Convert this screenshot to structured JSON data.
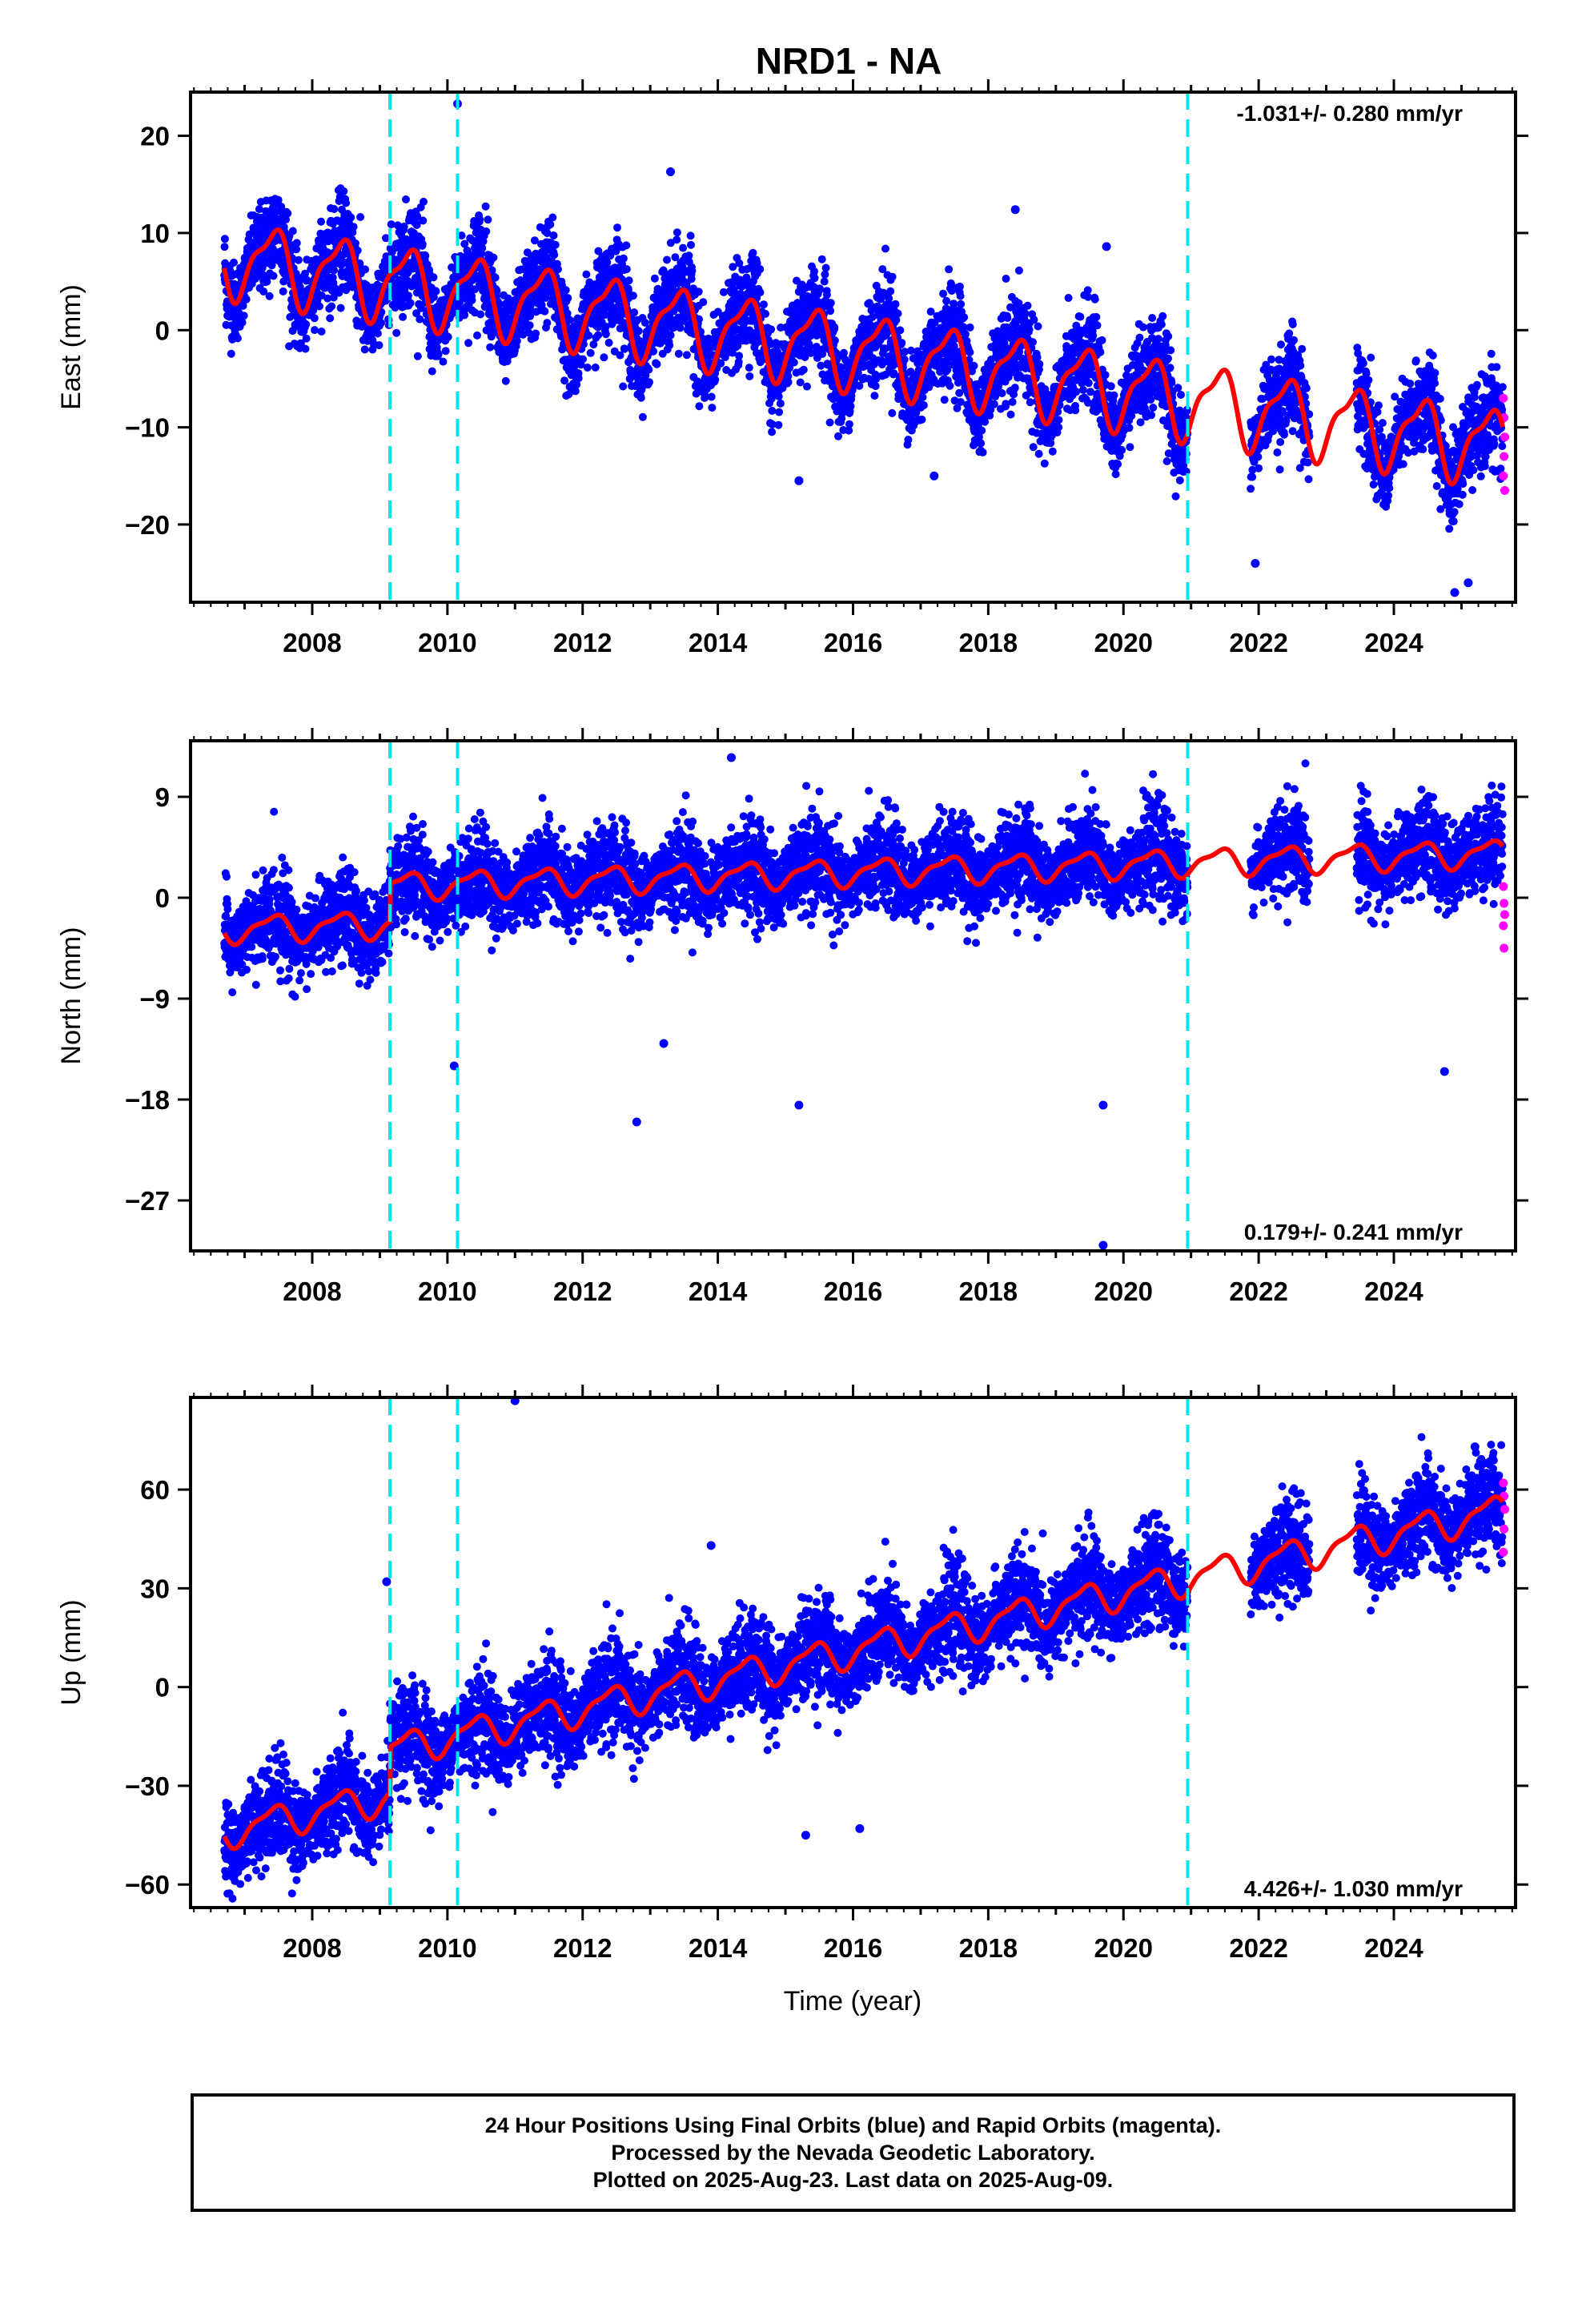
{
  "chart_data": {
    "type": "scatter",
    "title": "NRD1 - NA",
    "xlabel": "Time (year)",
    "x_ticks": [
      2008,
      2010,
      2012,
      2014,
      2016,
      2018,
      2020,
      2022,
      2024
    ],
    "xlim": [
      2006.2,
      2025.8
    ],
    "data_start": 2006.7,
    "data_end": 2025.61,
    "equipment_changes": [
      2009.15,
      2010.15,
      2020.95
    ],
    "colors": {
      "final_orbits": "#0000ff",
      "rapid_orbits": "#ff00ff",
      "model_fit": "#ff0000",
      "equipment_change": "#00e5ee"
    },
    "panels": [
      {
        "name": "east",
        "ylabel": "East (mm)",
        "ylim": [
          -28,
          24.5
        ],
        "y_ticks": [
          20,
          10,
          0,
          -10,
          -20
        ],
        "y_tick_labels": [
          "20",
          "10",
          "0",
          "−10",
          "−20"
        ],
        "rate": "-1.031+/- 0.280 mm/yr",
        "rate_position": "top-right",
        "trend": {
          "start": 7.5,
          "slope": -1.031
        },
        "annual_amplitude": 3.6,
        "offsets": [],
        "scatter_sd": 2.6,
        "outliers": [
          [
            2010.15,
            23.3
          ],
          [
            2019.75,
            8.6
          ],
          [
            2021.95,
            -24
          ],
          [
            2024.9,
            -27
          ],
          [
            2025.1,
            -26
          ],
          [
            2013.3,
            16.3
          ],
          [
            2018.4,
            12.4
          ],
          [
            2015.2,
            -15.5
          ],
          [
            2017.2,
            -15
          ]
        ],
        "rapid_points": [
          [
            2025.62,
            -7
          ],
          [
            2025.63,
            -9
          ],
          [
            2025.64,
            -11
          ],
          [
            2025.63,
            -13
          ],
          [
            2025.62,
            -15
          ],
          [
            2025.64,
            -16.5
          ]
        ]
      },
      {
        "name": "north",
        "ylabel": "North (mm)",
        "ylim": [
          -31.5,
          14
        ],
        "y_ticks": [
          9,
          0,
          -9,
          -18,
          -27
        ],
        "y_tick_labels": [
          "9",
          "0",
          "−9",
          "−18",
          "−27"
        ],
        "rate": "0.179+/- 0.241 mm/yr",
        "rate_position": "bottom-right",
        "trend": {
          "start": -2.8,
          "slope": 0.179
        },
        "annual_amplitude": 1.1,
        "offsets": [
          [
            2009.15,
            3.4
          ]
        ],
        "scatter_sd": 2.2,
        "outliers": [
          [
            2019.7,
            -31
          ],
          [
            2010.1,
            -15
          ],
          [
            2012.8,
            -20
          ],
          [
            2015.2,
            -18.5
          ],
          [
            2019.7,
            -18.5
          ],
          [
            2024.75,
            -15.5
          ],
          [
            2014.2,
            12.5
          ],
          [
            2013.2,
            -13
          ]
        ],
        "rapid_points": [
          [
            2025.62,
            1
          ],
          [
            2025.63,
            -0.5
          ],
          [
            2025.64,
            -1.5
          ],
          [
            2025.62,
            -2.5
          ],
          [
            2025.63,
            -4.5
          ]
        ]
      },
      {
        "name": "up",
        "ylabel": "Up (mm)",
        "ylim": [
          -67,
          88
        ],
        "y_ticks": [
          60,
          30,
          0,
          -30,
          -60
        ],
        "y_tick_labels": [
          "60",
          "30",
          "0",
          "−30",
          "−60"
        ],
        "rate": "4.426+/- 1.030 mm/yr",
        "rate_position": "bottom-right",
        "trend": {
          "start": -44,
          "slope": 4.426
        },
        "annual_amplitude": 4.5,
        "offsets": [
          [
            2009.15,
            14
          ]
        ],
        "scatter_sd": 8,
        "outliers": [
          [
            2011.0,
            87
          ],
          [
            2009.1,
            32
          ],
          [
            2013.9,
            43
          ],
          [
            2025.2,
            73
          ],
          [
            2015.3,
            -45
          ],
          [
            2016.1,
            -43
          ]
        ],
        "rapid_points": [
          [
            2025.62,
            62
          ],
          [
            2025.63,
            58
          ],
          [
            2025.64,
            54
          ],
          [
            2025.63,
            48
          ],
          [
            2025.62,
            41
          ]
        ]
      }
    ],
    "gaps": [
      [
        2021.05,
        2021.88
      ],
      [
        2022.75,
        2023.45
      ]
    ]
  },
  "footer": {
    "line1": "24 Hour Positions Using Final Orbits (blue) and Rapid Orbits (magenta).",
    "line2": "Processed by the Nevada Geodetic Laboratory.",
    "line3": "Plotted on 2025-Aug-23. Last data on 2025-Aug-09."
  }
}
